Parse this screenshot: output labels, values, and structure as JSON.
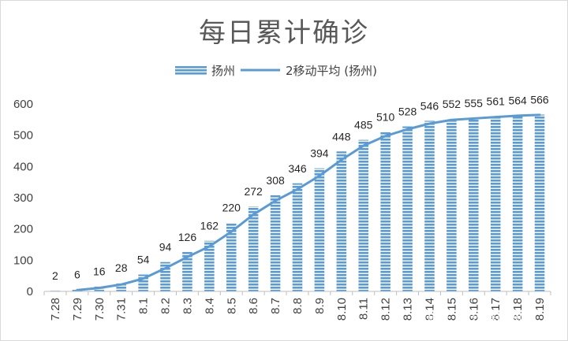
{
  "chart_data": {
    "type": "bar",
    "title": "每日累计确诊",
    "categories": [
      "7.28",
      "7.29",
      "7.30",
      "7.31",
      "8.1",
      "8.2",
      "8.3",
      "8.4",
      "8.5",
      "8.6",
      "8.7",
      "8.8",
      "8.9",
      "8.10",
      "8.11",
      "8.12",
      "8.13",
      "8.14",
      "8.15",
      "8.16",
      "8.17",
      "8.18",
      "8.19"
    ],
    "series": [
      {
        "name": "扬州",
        "kind": "bar",
        "values": [
          2,
          6,
          16,
          28,
          54,
          94,
          126,
          162,
          220,
          272,
          308,
          346,
          394,
          448,
          485,
          510,
          528,
          546,
          552,
          555,
          561,
          564,
          566
        ]
      },
      {
        "name": "2移动平均 (扬州)",
        "kind": "line",
        "values": [
          null,
          4,
          11,
          22,
          41,
          74,
          110,
          144,
          191,
          246,
          290,
          327,
          370,
          421,
          466.5,
          497.5,
          519,
          537,
          549,
          553.5,
          558,
          562.5,
          565
        ]
      }
    ],
    "ylim": [
      0,
      600
    ],
    "yticks": [
      0,
      100,
      200,
      300,
      400,
      500,
      600
    ],
    "xlabel": "",
    "ylabel": "",
    "legend_position": "top-center",
    "gridlines": false,
    "colors": {
      "bar": "#5b9bd5",
      "bar_stripe": "#ffffff",
      "line": "#5b9bd5",
      "axis": "#bfbfbf",
      "border": "#d9d9d9"
    }
  },
  "watermark": "知乎 @39健康网"
}
